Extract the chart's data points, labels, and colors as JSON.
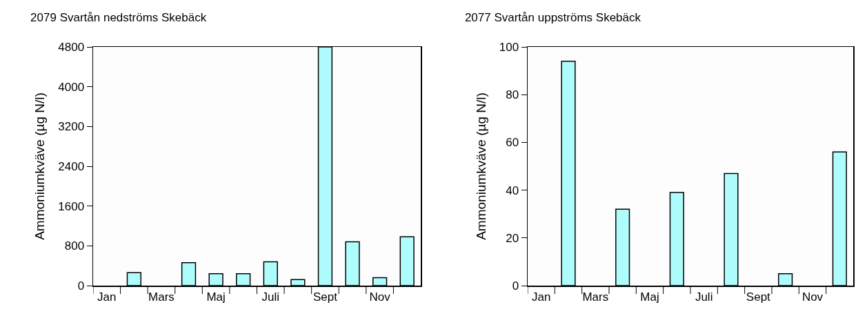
{
  "chart_data": [
    {
      "type": "bar",
      "title": "2079 Svartån nedströms Skebäck",
      "ylabel": "Ammoniumkväve (µg N/l)",
      "categories": [
        "Jan",
        null,
        "Mars",
        null,
        "Maj",
        null,
        "Juli",
        null,
        "Sept",
        null,
        "Nov",
        null
      ],
      "values": [
        null,
        260,
        null,
        460,
        240,
        240,
        480,
        120,
        4800,
        880,
        160,
        980
      ],
      "color": "#aefcfc",
      "ylim": [
        0,
        4800
      ],
      "yticks": [
        0,
        800,
        1600,
        2400,
        3200,
        4000,
        4800
      ],
      "grid": false
    },
    {
      "type": "bar",
      "title": "2077 Svartån uppströms Skebäck",
      "ylabel": "Ammoniumkväve (µg N/l)",
      "categories": [
        "Jan",
        null,
        "Mars",
        null,
        "Maj",
        null,
        "Juli",
        null,
        "Sept",
        null,
        "Nov",
        null
      ],
      "values": [
        null,
        94,
        null,
        32,
        null,
        39,
        null,
        47,
        null,
        5,
        null,
        56
      ],
      "color": "#aefcfc",
      "ylim": [
        0,
        100
      ],
      "yticks": [
        0,
        20,
        40,
        60,
        80,
        100
      ],
      "grid": false
    }
  ]
}
